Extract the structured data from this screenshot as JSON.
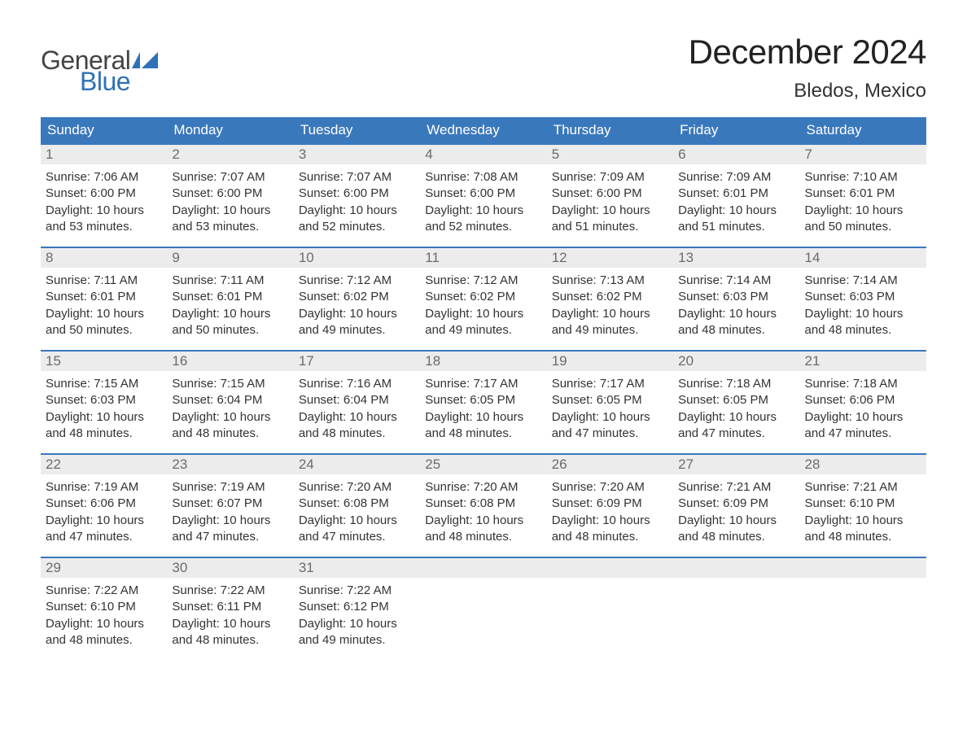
{
  "logo": {
    "word1": "General",
    "word2": "Blue",
    "word1_color": "#444444",
    "word2_color": "#2f71b8",
    "flag_color": "#2f71b8"
  },
  "title": "December 2024",
  "location": "Bledos, Mexico",
  "colors": {
    "header_bg": "#3a78bc",
    "header_text": "#ffffff",
    "week_border": "#3a78bc",
    "daynum_bg": "#ececec",
    "daynum_text": "#6b6b6b",
    "page_bg": "#ffffff",
    "body_text": "#333333"
  },
  "days_of_week": [
    "Sunday",
    "Monday",
    "Tuesday",
    "Wednesday",
    "Thursday",
    "Friday",
    "Saturday"
  ],
  "labels": {
    "sunrise": "Sunrise:",
    "sunset": "Sunset:",
    "daylight": "Daylight:"
  },
  "weeks": [
    [
      {
        "n": "1",
        "sunrise": "7:06 AM",
        "sunset": "6:00 PM",
        "dl1": "10 hours",
        "dl2": "and 53 minutes."
      },
      {
        "n": "2",
        "sunrise": "7:07 AM",
        "sunset": "6:00 PM",
        "dl1": "10 hours",
        "dl2": "and 53 minutes."
      },
      {
        "n": "3",
        "sunrise": "7:07 AM",
        "sunset": "6:00 PM",
        "dl1": "10 hours",
        "dl2": "and 52 minutes."
      },
      {
        "n": "4",
        "sunrise": "7:08 AM",
        "sunset": "6:00 PM",
        "dl1": "10 hours",
        "dl2": "and 52 minutes."
      },
      {
        "n": "5",
        "sunrise": "7:09 AM",
        "sunset": "6:00 PM",
        "dl1": "10 hours",
        "dl2": "and 51 minutes."
      },
      {
        "n": "6",
        "sunrise": "7:09 AM",
        "sunset": "6:01 PM",
        "dl1": "10 hours",
        "dl2": "and 51 minutes."
      },
      {
        "n": "7",
        "sunrise": "7:10 AM",
        "sunset": "6:01 PM",
        "dl1": "10 hours",
        "dl2": "and 50 minutes."
      }
    ],
    [
      {
        "n": "8",
        "sunrise": "7:11 AM",
        "sunset": "6:01 PM",
        "dl1": "10 hours",
        "dl2": "and 50 minutes."
      },
      {
        "n": "9",
        "sunrise": "7:11 AM",
        "sunset": "6:01 PM",
        "dl1": "10 hours",
        "dl2": "and 50 minutes."
      },
      {
        "n": "10",
        "sunrise": "7:12 AM",
        "sunset": "6:02 PM",
        "dl1": "10 hours",
        "dl2": "and 49 minutes."
      },
      {
        "n": "11",
        "sunrise": "7:12 AM",
        "sunset": "6:02 PM",
        "dl1": "10 hours",
        "dl2": "and 49 minutes."
      },
      {
        "n": "12",
        "sunrise": "7:13 AM",
        "sunset": "6:02 PM",
        "dl1": "10 hours",
        "dl2": "and 49 minutes."
      },
      {
        "n": "13",
        "sunrise": "7:14 AM",
        "sunset": "6:03 PM",
        "dl1": "10 hours",
        "dl2": "and 48 minutes."
      },
      {
        "n": "14",
        "sunrise": "7:14 AM",
        "sunset": "6:03 PM",
        "dl1": "10 hours",
        "dl2": "and 48 minutes."
      }
    ],
    [
      {
        "n": "15",
        "sunrise": "7:15 AM",
        "sunset": "6:03 PM",
        "dl1": "10 hours",
        "dl2": "and 48 minutes."
      },
      {
        "n": "16",
        "sunrise": "7:15 AM",
        "sunset": "6:04 PM",
        "dl1": "10 hours",
        "dl2": "and 48 minutes."
      },
      {
        "n": "17",
        "sunrise": "7:16 AM",
        "sunset": "6:04 PM",
        "dl1": "10 hours",
        "dl2": "and 48 minutes."
      },
      {
        "n": "18",
        "sunrise": "7:17 AM",
        "sunset": "6:05 PM",
        "dl1": "10 hours",
        "dl2": "and 48 minutes."
      },
      {
        "n": "19",
        "sunrise": "7:17 AM",
        "sunset": "6:05 PM",
        "dl1": "10 hours",
        "dl2": "and 47 minutes."
      },
      {
        "n": "20",
        "sunrise": "7:18 AM",
        "sunset": "6:05 PM",
        "dl1": "10 hours",
        "dl2": "and 47 minutes."
      },
      {
        "n": "21",
        "sunrise": "7:18 AM",
        "sunset": "6:06 PM",
        "dl1": "10 hours",
        "dl2": "and 47 minutes."
      }
    ],
    [
      {
        "n": "22",
        "sunrise": "7:19 AM",
        "sunset": "6:06 PM",
        "dl1": "10 hours",
        "dl2": "and 47 minutes."
      },
      {
        "n": "23",
        "sunrise": "7:19 AM",
        "sunset": "6:07 PM",
        "dl1": "10 hours",
        "dl2": "and 47 minutes."
      },
      {
        "n": "24",
        "sunrise": "7:20 AM",
        "sunset": "6:08 PM",
        "dl1": "10 hours",
        "dl2": "and 47 minutes."
      },
      {
        "n": "25",
        "sunrise": "7:20 AM",
        "sunset": "6:08 PM",
        "dl1": "10 hours",
        "dl2": "and 48 minutes."
      },
      {
        "n": "26",
        "sunrise": "7:20 AM",
        "sunset": "6:09 PM",
        "dl1": "10 hours",
        "dl2": "and 48 minutes."
      },
      {
        "n": "27",
        "sunrise": "7:21 AM",
        "sunset": "6:09 PM",
        "dl1": "10 hours",
        "dl2": "and 48 minutes."
      },
      {
        "n": "28",
        "sunrise": "7:21 AM",
        "sunset": "6:10 PM",
        "dl1": "10 hours",
        "dl2": "and 48 minutes."
      }
    ],
    [
      {
        "n": "29",
        "sunrise": "7:22 AM",
        "sunset": "6:10 PM",
        "dl1": "10 hours",
        "dl2": "and 48 minutes."
      },
      {
        "n": "30",
        "sunrise": "7:22 AM",
        "sunset": "6:11 PM",
        "dl1": "10 hours",
        "dl2": "and 48 minutes."
      },
      {
        "n": "31",
        "sunrise": "7:22 AM",
        "sunset": "6:12 PM",
        "dl1": "10 hours",
        "dl2": "and 49 minutes."
      },
      {
        "empty": true
      },
      {
        "empty": true
      },
      {
        "empty": true
      },
      {
        "empty": true
      }
    ]
  ]
}
